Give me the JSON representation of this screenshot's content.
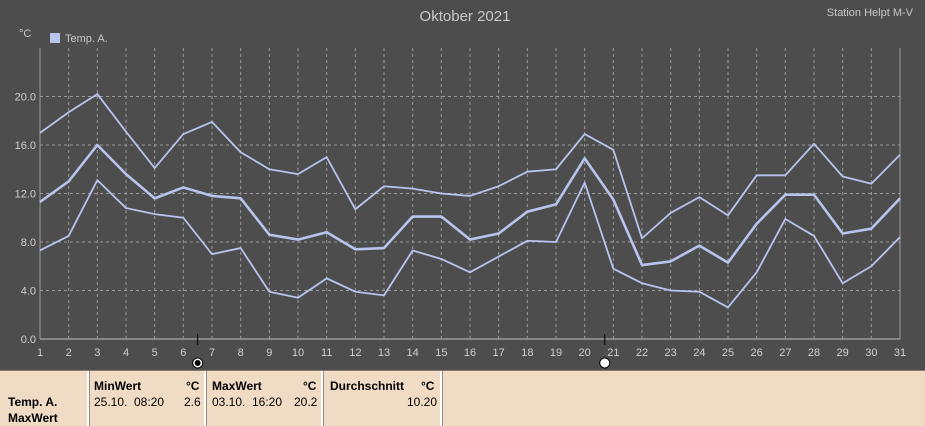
{
  "title": "Oktober 2021",
  "station": "Station Helpt M-V",
  "unit": "°C",
  "legend": "Temp. A.",
  "colors": {
    "background": "#4d4d4d",
    "series": "#b8c4ee",
    "grid": "#9a9a9a",
    "axis": "#9a9a9a",
    "table_bg": "#f0dcc5"
  },
  "chart_data": {
    "type": "line",
    "x": [
      1,
      2,
      3,
      4,
      5,
      6,
      7,
      8,
      9,
      10,
      11,
      12,
      13,
      14,
      15,
      16,
      17,
      18,
      19,
      20,
      21,
      22,
      23,
      24,
      25,
      26,
      27,
      28,
      29,
      30,
      31
    ],
    "xlim": [
      1,
      31
    ],
    "ylim": [
      0,
      24
    ],
    "yticks": [
      "0.0",
      "4.0",
      "8.0",
      "12.0",
      "16.0",
      "20.0"
    ],
    "ytick_values": [
      0,
      4,
      8,
      12,
      16,
      20
    ],
    "grid": true,
    "legend_position": "top-left",
    "series": [
      {
        "role": "max",
        "values": [
          17.0,
          18.7,
          20.2,
          17.1,
          14.1,
          16.9,
          17.9,
          15.4,
          14.0,
          13.6,
          15.0,
          10.7,
          12.6,
          12.4,
          12.0,
          11.8,
          12.6,
          13.8,
          14.0,
          16.9,
          15.6,
          8.3,
          10.4,
          11.7,
          10.2,
          13.5,
          13.5,
          16.1,
          13.4,
          12.8,
          15.2
        ]
      },
      {
        "role": "avg",
        "values": [
          11.3,
          13.0,
          16.0,
          13.6,
          11.6,
          12.5,
          11.8,
          11.6,
          8.6,
          8.2,
          8.8,
          7.4,
          7.5,
          10.1,
          10.1,
          8.2,
          8.7,
          10.5,
          11.1,
          14.9,
          11.5,
          6.1,
          6.4,
          7.7,
          6.3,
          9.5,
          11.9,
          11.9,
          8.7,
          9.1,
          11.6
        ]
      },
      {
        "role": "min",
        "values": [
          7.3,
          8.5,
          13.1,
          10.8,
          10.3,
          10.0,
          7.0,
          7.5,
          3.9,
          3.4,
          5.0,
          3.9,
          3.6,
          7.3,
          6.6,
          5.5,
          6.8,
          8.1,
          8.0,
          12.9,
          5.8,
          4.6,
          4.0,
          3.9,
          2.6,
          5.5,
          9.9,
          8.5,
          4.6,
          6.0,
          8.4
        ]
      }
    ],
    "markers": [
      {
        "x": 6.5,
        "type": "filled"
      },
      {
        "x": 20.7,
        "type": "open"
      }
    ]
  },
  "summary": {
    "row_label": "Temp. A.",
    "row_sublabel": "MaxWert",
    "min_header": "MinWert",
    "max_header": "MaxWert",
    "avg_header": "Durchschnitt",
    "unit": "°C",
    "min_date": "25.10.",
    "min_time": "08:20",
    "min_value": "2.6",
    "max_date": "03.10.",
    "max_time": "16:20",
    "max_value": "20.2",
    "avg_value": "10.20"
  }
}
